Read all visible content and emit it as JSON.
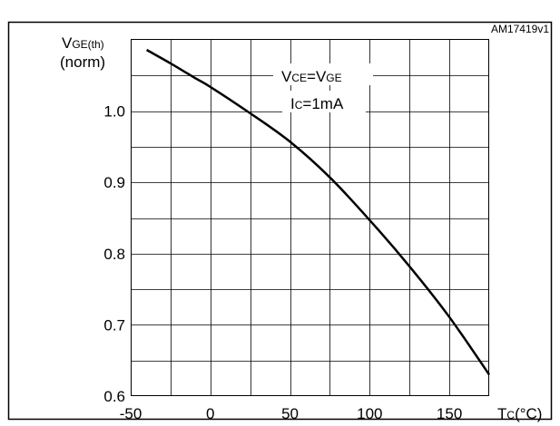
{
  "figure": {
    "title": "",
    "ref_code": "AM17419v1"
  },
  "chart_data": {
    "type": "line",
    "xlabel_main": "T",
    "xlabel_sub": "C",
    "xlabel_unit": "(°C)",
    "ylabel_main": "V",
    "ylabel_sub": "GE(th)",
    "ylabel_line2": "(norm)",
    "xlim": [
      -50,
      175
    ],
    "ylim": [
      0.6,
      1.1
    ],
    "x_ticks": [
      -50,
      0,
      50,
      100,
      150
    ],
    "x_tick_labels": [
      "-50",
      "0",
      "50",
      "100",
      "150"
    ],
    "y_ticks": [
      0.6,
      0.7,
      0.8,
      0.9,
      1.0
    ],
    "y_tick_labels": [
      "0.6",
      "0.7",
      "0.8",
      "0.9",
      "1.0"
    ],
    "grid": true,
    "annotations": [
      {
        "main": "V",
        "sub": "CE",
        "mid": "=V",
        "sub2": "GE"
      },
      {
        "main": "I",
        "sub": "C",
        "mid": "=1mA",
        "sub2": ""
      }
    ],
    "series": [
      {
        "x": [
          -40,
          -25,
          -10,
          0,
          25,
          50,
          75,
          100,
          125,
          150,
          175
        ],
        "y": [
          1.086,
          1.067,
          1.047,
          1.034,
          0.997,
          0.957,
          0.907,
          0.847,
          0.782,
          0.711,
          0.63
        ]
      }
    ]
  }
}
